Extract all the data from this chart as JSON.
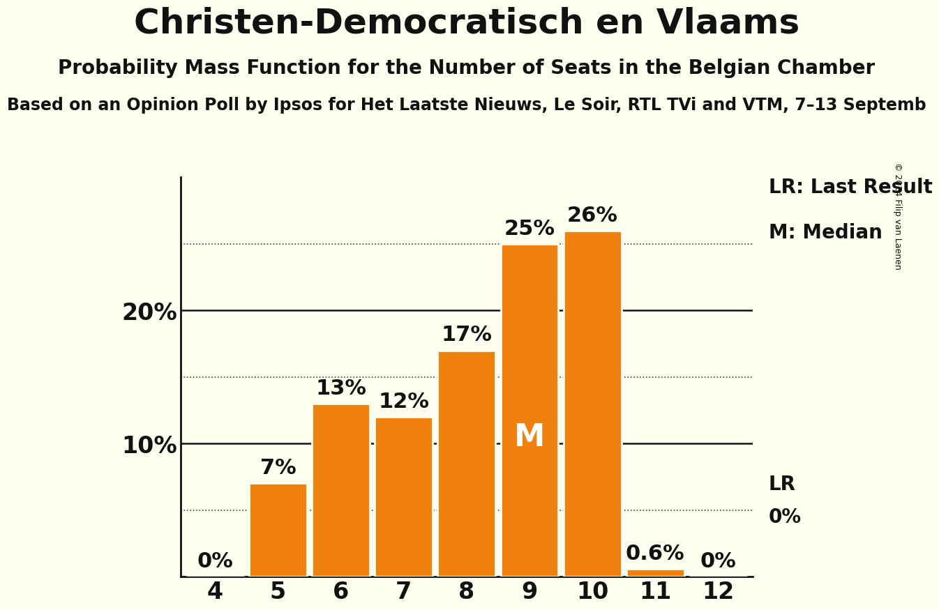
{
  "title": "Christen-Democratisch en Vlaams",
  "subtitle1": "Probability Mass Function for the Number of Seats in the Belgian Chamber",
  "subtitle2": "Based on an Opinion Poll by Ipsos for Het Laatste Nieuws, Le Soir, RTL TVi and VTM, 7–13 Septemb",
  "copyright": "© 2024 Filip van Laenen",
  "categories": [
    4,
    5,
    6,
    7,
    8,
    9,
    10,
    11,
    12
  ],
  "values": [
    0.0,
    7.0,
    13.0,
    12.0,
    17.0,
    25.0,
    26.0,
    0.6,
    0.0
  ],
  "labels": [
    "0%",
    "7%",
    "13%",
    "12%",
    "17%",
    "25%",
    "26%",
    "0.6%",
    "0%"
  ],
  "bar_color": "#f0810f",
  "background_color": "#fffff0",
  "text_color": "#111111",
  "median_index": 5,
  "ylim": [
    0,
    30
  ],
  "dotted_line_values": [
    5,
    15,
    25
  ],
  "solid_line_values": [
    10,
    20
  ],
  "legend_lr": "LR: Last Result",
  "legend_m": "M: Median",
  "lr_label": "LR",
  "lr_index": 8,
  "title_fontsize": 36,
  "subtitle1_fontsize": 20,
  "subtitle2_fontsize": 17,
  "bar_label_fontsize": 22,
  "axis_label_fontsize": 24,
  "legend_fontsize": 20,
  "median_label_fontsize": 32
}
